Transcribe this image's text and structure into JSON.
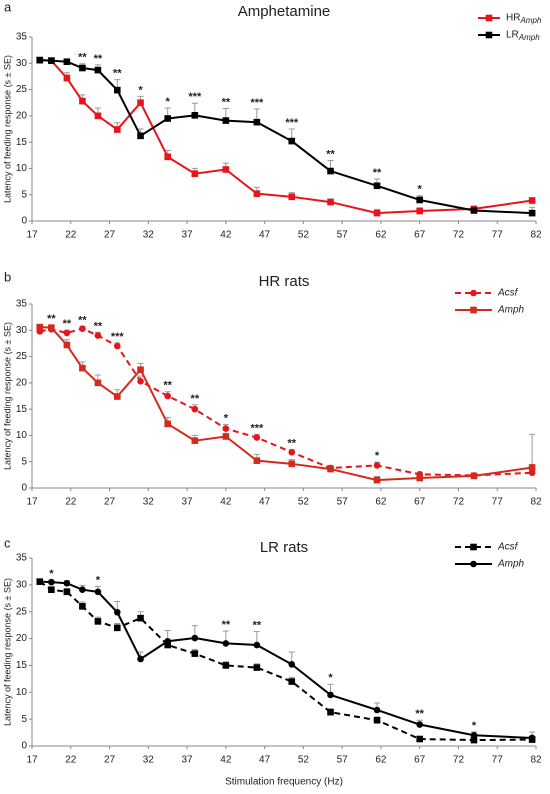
{
  "chart_data": [
    {
      "type": "line",
      "panel": "a",
      "title": "Amphetamine",
      "ylabel": "Latency of feeding response (s ± SE)",
      "x": [
        18,
        19.5,
        21.5,
        23.5,
        25.5,
        28,
        31,
        34.5,
        38,
        42,
        46,
        50.5,
        55.5,
        61.5,
        67,
        74,
        81.5
      ],
      "xlim": [
        17,
        82
      ],
      "xticks": [
        17,
        22,
        27,
        32,
        37,
        42,
        47,
        52,
        57,
        62,
        67,
        72,
        77,
        82
      ],
      "ylim": [
        0,
        35
      ],
      "yticks": [
        0,
        5,
        10,
        15,
        20,
        25,
        30,
        35
      ],
      "legend": "upper right",
      "legend_italic": false,
      "series": [
        {
          "name": "HR",
          "subscript": "Amph",
          "color": "#e8141b",
          "marker": "square",
          "dashed": false,
          "values": [
            30.6,
            30.5,
            27.2,
            22.8,
            20,
            17.4,
            22.5,
            12.2,
            9,
            9.8,
            5.2,
            4.6,
            3.6,
            1.5,
            1.9,
            2.3,
            3.9
          ],
          "errors": [
            0.5,
            0.5,
            1,
            1.2,
            1.5,
            1.3,
            1.2,
            1.2,
            1,
            1.2,
            1.2,
            0.8,
            0.6,
            0.7,
            0.6,
            0.5,
            0.5
          ]
        },
        {
          "name": "LR",
          "subscript": "Amph",
          "color": "#000000",
          "marker": "square",
          "dashed": false,
          "values": [
            30.6,
            30.5,
            30.3,
            29.1,
            28.7,
            24.9,
            16.2,
            19.5,
            20.1,
            19.1,
            18.8,
            15.2,
            9.5,
            6.7,
            4.0,
            2.0,
            1.5
          ],
          "errors": [
            0.5,
            0.4,
            0.5,
            0.8,
            1,
            2,
            1.3,
            2,
            2.3,
            2.3,
            2.5,
            2.3,
            2,
            1.3,
            0.8,
            0.6,
            1.1
          ]
        }
      ],
      "significance": [
        null,
        null,
        null,
        "**",
        "**",
        "**",
        "*",
        "*",
        "***",
        "**",
        "***",
        "***",
        "**",
        "**",
        "*",
        null,
        null
      ]
    },
    {
      "type": "line",
      "panel": "b",
      "title": "HR rats",
      "ylabel": "Latency of feeding response (s ± SE)",
      "x": [
        18,
        19.5,
        21.5,
        23.5,
        25.5,
        28,
        31,
        34.5,
        38,
        42,
        46,
        50.5,
        55.5,
        61.5,
        67,
        74,
        81.5
      ],
      "xlim": [
        17,
        82
      ],
      "xticks": [
        17,
        22,
        27,
        32,
        37,
        42,
        47,
        52,
        57,
        62,
        67,
        72,
        77,
        82
      ],
      "ylim": [
        0,
        35
      ],
      "yticks": [
        0,
        5,
        10,
        15,
        20,
        25,
        30,
        35
      ],
      "legend": "upper right",
      "legend_italic": true,
      "series": [
        {
          "name": "Acsf",
          "color": "#e8141b",
          "marker": "circle",
          "dashed": true,
          "values": [
            29.8,
            30.2,
            29.5,
            30.3,
            29,
            27,
            20.3,
            17.5,
            15,
            11.3,
            9.6,
            6.8,
            3.8,
            4.3,
            2.6,
            2.4,
            2.9
          ],
          "errors": [
            0.5,
            0.5,
            0.5,
            0.4,
            0.6,
            0.6,
            1,
            0.8,
            0.8,
            0.8,
            0.6,
            0.5,
            0.5,
            0.6,
            0.4,
            0.4,
            7.3
          ]
        },
        {
          "name": "Amph",
          "color": "#d42a1e",
          "marker": "square",
          "dashed": false,
          "values": [
            30.6,
            30.5,
            27.2,
            22.8,
            20,
            17.4,
            22.5,
            12.2,
            9,
            9.8,
            5.2,
            4.6,
            3.6,
            1.5,
            1.9,
            2.3,
            3.9
          ],
          "errors": [
            0.5,
            0.5,
            1,
            1.2,
            1.5,
            1.3,
            1.2,
            1.2,
            1,
            1.2,
            1.2,
            0.8,
            0.6,
            0.7,
            0.6,
            0.5,
            0.5
          ]
        }
      ],
      "significance": [
        null,
        "**",
        "**",
        "**",
        "**",
        "***",
        null,
        "**",
        "**",
        "*",
        "***",
        "**",
        null,
        "*",
        null,
        null,
        null
      ]
    },
    {
      "type": "line",
      "panel": "c",
      "title": "LR rats",
      "ylabel": "Latency of feeding response (s ± SE)",
      "xlabel": "Stimulation frequency (Hz)",
      "x": [
        18,
        19.5,
        21.5,
        23.5,
        25.5,
        28,
        31,
        34.5,
        38,
        42,
        46,
        50.5,
        55.5,
        61.5,
        67,
        74,
        81.5
      ],
      "xlim": [
        17,
        82
      ],
      "xticks": [
        17,
        22,
        27,
        32,
        37,
        42,
        47,
        52,
        57,
        62,
        67,
        72,
        77,
        82
      ],
      "ylim": [
        0,
        35
      ],
      "yticks": [
        0,
        5,
        10,
        15,
        20,
        25,
        30,
        35
      ],
      "legend": "upper right",
      "legend_italic": true,
      "series": [
        {
          "name": "Acsf",
          "color": "#000000",
          "marker": "square",
          "dashed": true,
          "values": [
            30.6,
            29.1,
            28.7,
            26,
            23.2,
            22,
            23.8,
            18.8,
            17.2,
            15,
            14.6,
            12,
            6.3,
            4.8,
            1.3,
            1.1,
            1.2
          ],
          "errors": [
            0.4,
            0.5,
            0.6,
            0.8,
            0.8,
            0.8,
            1.2,
            0.8,
            0.8,
            0.7,
            0.7,
            0.8,
            0.6,
            0.6,
            0.4,
            0.4,
            0.5
          ]
        },
        {
          "name": "Amph",
          "color": "#000000",
          "marker": "circle",
          "dashed": false,
          "values": [
            30.6,
            30.5,
            30.3,
            29.1,
            28.7,
            24.9,
            16.2,
            19.5,
            20.1,
            19.1,
            18.8,
            15.2,
            9.5,
            6.7,
            4.0,
            2.0,
            1.5
          ],
          "errors": [
            0.5,
            0.4,
            0.5,
            0.8,
            1,
            2,
            1.3,
            2,
            2.3,
            2.3,
            2.5,
            2.3,
            2,
            1.3,
            0.8,
            0.6,
            1.1
          ]
        }
      ],
      "significance": [
        null,
        "*",
        null,
        null,
        "*",
        null,
        null,
        null,
        null,
        "**",
        "**",
        null,
        "*",
        null,
        "**",
        "*",
        null
      ]
    }
  ]
}
